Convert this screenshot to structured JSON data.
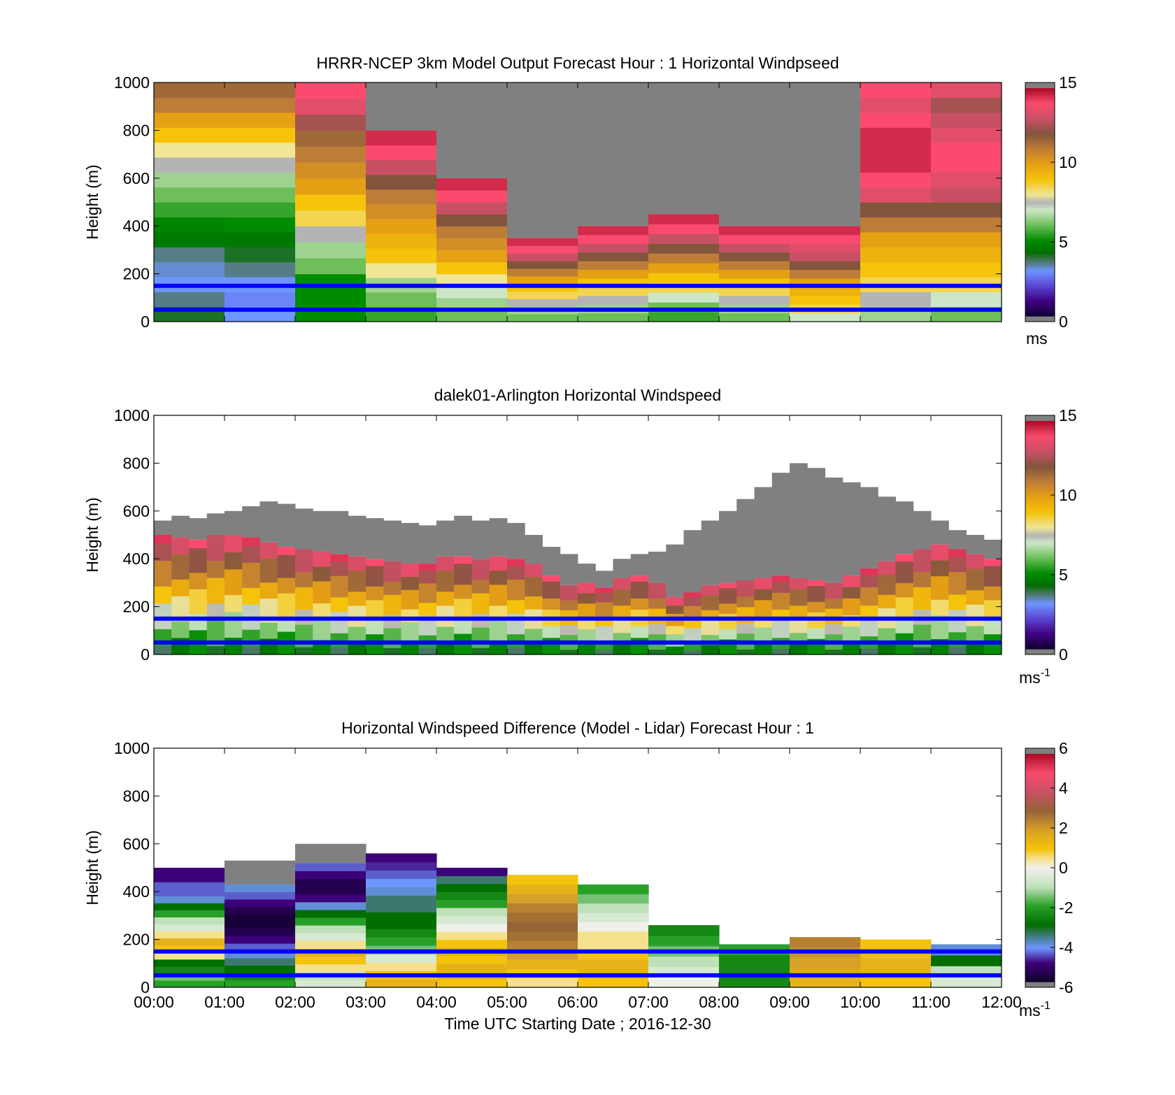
{
  "time_ticks": [
    "00:00",
    "01:00",
    "02:00",
    "03:00",
    "04:00",
    "05:00",
    "06:00",
    "07:00",
    "08:00",
    "09:00",
    "10:00",
    "11:00",
    "12:00"
  ],
  "xlabel": "Time UTC  Starting Date ; 2016-12-30",
  "blue_line_heights_m": [
    50,
    150
  ],
  "chart_data": [
    {
      "type": "heatmap",
      "title": "HRRR-NCEP 3km Model Output   Forecast Hour : 1 Horizontal Windpseed",
      "ylabel": "Height (m)",
      "ylim": [
        0,
        1000
      ],
      "yticks": [
        "0",
        "200",
        "400",
        "600",
        "800",
        "1000"
      ],
      "colorbar": {
        "range": [
          0,
          15
        ],
        "ticks": [
          "0",
          "5",
          "10",
          "15"
        ],
        "units": "ms"
      },
      "x_hours": [
        0,
        1,
        2,
        3,
        4,
        5,
        6,
        7,
        8,
        9,
        10,
        11,
        12
      ],
      "missing_color": "#808080",
      "columns": [
        {
          "t": 0,
          "top_m": 1000,
          "values_bottom_to_top": [
            4,
            3.5,
            3,
            3.2,
            3.5,
            4.5,
            4.8,
            5.5,
            6,
            6.5,
            7.5,
            8,
            9,
            10,
            11,
            11.5
          ]
        },
        {
          "t": 1,
          "top_m": 1000,
          "values_bottom_to_top": [
            3,
            2.8,
            3,
            3.5,
            4,
            4.5,
            5,
            5.5,
            6,
            6.5,
            7.5,
            8,
            9,
            10,
            11,
            11.5
          ]
        },
        {
          "t": 2,
          "top_m": 1000,
          "values_bottom_to_top": [
            5,
            5,
            5,
            6,
            6.5,
            7.5,
            8.5,
            9,
            10,
            10.5,
            11,
            11.5,
            12.5,
            13.5,
            14
          ]
        },
        {
          "t": 3,
          "top_m": 800,
          "values_bottom_to_top": [
            5.5,
            6,
            6.5,
            8,
            9,
            9.5,
            10,
            10.5,
            11,
            12,
            13,
            14,
            14.5
          ]
        },
        {
          "t": 4,
          "top_m": 600,
          "values_bottom_to_top": [
            6,
            6.5,
            7,
            8,
            9,
            10,
            10.5,
            11,
            12,
            13,
            14,
            14.5
          ]
        },
        {
          "t": 5,
          "top_m": 350,
          "values_bottom_to_top": [
            6,
            6.5,
            7.5,
            8.5,
            9,
            10,
            11,
            12,
            13,
            14,
            14.5
          ]
        },
        {
          "t": 6,
          "top_m": 400,
          "values_bottom_to_top": [
            6,
            6.5,
            7.5,
            8.5,
            9,
            10,
            11,
            12,
            13,
            14,
            14.5
          ]
        },
        {
          "t": 7,
          "top_m": 450,
          "values_bottom_to_top": [
            5.5,
            6,
            7,
            8.5,
            9,
            10,
            11,
            12,
            13,
            14,
            14.5
          ]
        },
        {
          "t": 8,
          "top_m": 400,
          "values_bottom_to_top": [
            6,
            6.5,
            7.5,
            8.5,
            9,
            10,
            11,
            12,
            13,
            14,
            14.5
          ]
        },
        {
          "t": 9,
          "top_m": 400,
          "values_bottom_to_top": [
            7,
            8.5,
            9,
            9.5,
            10,
            11,
            12,
            13,
            13.5,
            14,
            14.5
          ]
        },
        {
          "t": 10,
          "top_m": 1000,
          "values_bottom_to_top": [
            6.5,
            7.5,
            8.5,
            9,
            9.5,
            10,
            11,
            12,
            13.5,
            14,
            14.5,
            14.5,
            14.5,
            14,
            13.5,
            14
          ]
        },
        {
          "t": 11,
          "top_m": 1000,
          "values_bottom_to_top": [
            6,
            7,
            8.5,
            9,
            9.5,
            10,
            11,
            12,
            13,
            13.5,
            14,
            14,
            13.5,
            13,
            12.5,
            13.5
          ]
        }
      ]
    },
    {
      "type": "heatmap",
      "title": "dalek01-Arlington  Horizontal Windspeed",
      "ylabel": "Height (m)",
      "ylim": [
        0,
        1000
      ],
      "yticks": [
        "0",
        "200",
        "400",
        "600",
        "800",
        "1000"
      ],
      "colorbar": {
        "range": [
          0,
          15
        ],
        "ticks": [
          "0",
          "5",
          "10",
          "15"
        ],
        "units": "ms",
        "units_sup": "-1"
      },
      "column_width_h": 0.25,
      "missing_color": "#808080",
      "column_tops_m": [
        500,
        490,
        480,
        500,
        500,
        490,
        470,
        450,
        440,
        430,
        420,
        410,
        400,
        390,
        380,
        380,
        410,
        410,
        400,
        410,
        400,
        380,
        330,
        290,
        300,
        280,
        320,
        330,
        300,
        240,
        260,
        290,
        300,
        310,
        320,
        330,
        320,
        310,
        300,
        330,
        360,
        390,
        420,
        440,
        460,
        440,
        420,
        400
      ],
      "column_gray_tops_m": [
        560,
        580,
        570,
        590,
        600,
        620,
        640,
        630,
        610,
        600,
        600,
        580,
        570,
        560,
        550,
        540,
        560,
        580,
        560,
        570,
        550,
        500,
        450,
        420,
        380,
        350,
        400,
        420,
        430,
        460,
        520,
        560,
        600,
        650,
        700,
        760,
        800,
        780,
        740,
        720,
        700,
        660,
        640,
        600,
        560,
        520,
        500,
        480
      ]
    },
    {
      "type": "heatmap",
      "title": "Horizontal Windspeed Difference (Model - Lidar) Forecast Hour : 1",
      "ylabel": "Height (m)",
      "xlabel": "Time UTC  Starting Date ; 2016-12-30",
      "ylim": [
        0,
        1000
      ],
      "yticks": [
        "0",
        "200",
        "400",
        "600",
        "800",
        "1000"
      ],
      "colorbar": {
        "range": [
          -6,
          6
        ],
        "ticks": [
          "-6",
          "-4",
          "-2",
          "0",
          "2",
          "4",
          "6"
        ],
        "units": "ms",
        "units_sup": "-1"
      },
      "missing_color": "#808080",
      "columns": [
        {
          "t": 0,
          "top_m": 500,
          "gray_top_m": null,
          "values_bottom_to_top": [
            -2,
            -1.5,
            -2.5,
            -3,
            0.5,
            1,
            1.5,
            0.5,
            -0.5,
            -1,
            -2,
            -3,
            -4,
            -4.5,
            -4.5,
            -5,
            -5
          ]
        },
        {
          "t": 1,
          "top_m": 430,
          "gray_top_m": 530,
          "values_bottom_to_top": [
            -2,
            -2.5,
            -3,
            -3.5,
            -4,
            -4.5,
            -5,
            -5.5,
            -5.8,
            -5.8,
            -5.5,
            -5,
            -4.5,
            -4
          ]
        },
        {
          "t": 2,
          "top_m": 520,
          "gray_top_m": 600,
          "values_bottom_to_top": [
            -0.5,
            -1,
            0.5,
            1,
            1.5,
            0.5,
            -0.5,
            -1,
            -2,
            -3,
            -4,
            -5,
            -5.5,
            -5.5,
            -5,
            -4.5
          ]
        },
        {
          "t": 3,
          "top_m": 560,
          "gray_top_m": null,
          "values_bottom_to_top": [
            1.5,
            1,
            0.5,
            -0.5,
            -1.5,
            -2,
            -2.5,
            -3,
            -3,
            -3.5,
            -3.5,
            -4,
            -4.2,
            -4.5,
            -4.8,
            -5
          ]
        },
        {
          "t": 4,
          "top_m": 500,
          "gray_top_m": null,
          "values_bottom_to_top": [
            1,
            1.5,
            1.5,
            1,
            1.5,
            1,
            0.5,
            0,
            -0.5,
            -1,
            -2,
            -2.5,
            -3,
            -3.5,
            -5
          ]
        },
        {
          "t": 5,
          "top_m": 470,
          "gray_top_m": null,
          "values_bottom_to_top": [
            0.5,
            1,
            1.5,
            2,
            2.5,
            2.8,
            3,
            2.8,
            2.5,
            2,
            1.5,
            1
          ]
        },
        {
          "t": 6,
          "top_m": 430,
          "gray_top_m": null,
          "values_bottom_to_top": [
            1,
            1.5,
            1.5,
            1,
            0.5,
            0.5,
            0,
            -0.5,
            -1,
            -1.5,
            -2
          ]
        },
        {
          "t": 7,
          "top_m": 260,
          "gray_top_m": null,
          "values_bottom_to_top": [
            0,
            -0.5,
            -1,
            -1.5,
            -2,
            -2.5
          ]
        },
        {
          "t": 8,
          "top_m": 180,
          "gray_top_m": null,
          "values_bottom_to_top": [
            -2.5,
            -2.5,
            -2.5,
            -2
          ]
        },
        {
          "t": 9,
          "top_m": 210,
          "gray_top_m": null,
          "values_bottom_to_top": [
            1.5,
            1.8,
            2,
            2.2,
            2.5
          ]
        },
        {
          "t": 10,
          "top_m": 200,
          "gray_top_m": null,
          "values_bottom_to_top": [
            1,
            1.5,
            1.5,
            1.2,
            1
          ]
        },
        {
          "t": 11,
          "top_m": 180,
          "gray_top_m": null,
          "values_bottom_to_top": [
            -0.5,
            -1,
            -3,
            -4
          ]
        }
      ]
    }
  ]
}
